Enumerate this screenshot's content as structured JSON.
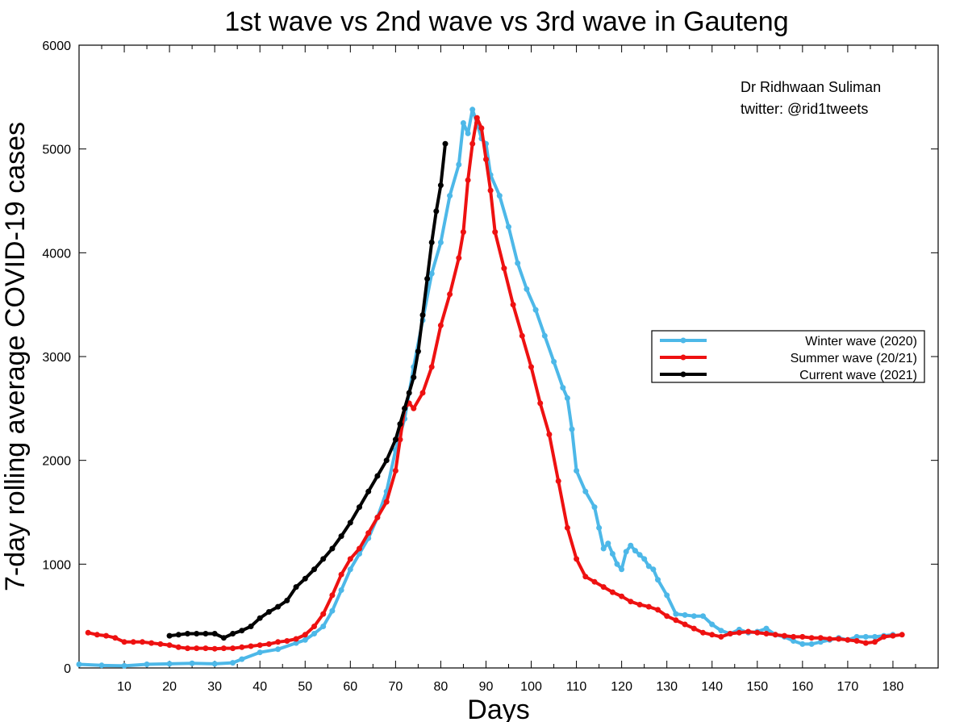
{
  "chart_data": {
    "type": "line",
    "title": "1st wave vs 2nd wave vs 3rd wave in Gauteng",
    "xlabel": "Days",
    "ylabel": "7-day rolling average COVID-19 cases",
    "xlim": [
      0,
      190
    ],
    "ylim": [
      0,
      6000
    ],
    "x_ticks": [
      10,
      20,
      30,
      40,
      50,
      60,
      70,
      80,
      90,
      100,
      110,
      120,
      130,
      140,
      150,
      160,
      170,
      180
    ],
    "y_ticks": [
      0,
      1000,
      2000,
      3000,
      4000,
      5000,
      6000
    ],
    "grid": false,
    "legend_position": "right-middle",
    "annotation": [
      "Dr Ridhwaan Suliman",
      "twitter: @rid1tweets"
    ],
    "series": [
      {
        "name": "Winter wave (2020)",
        "color": "#4db8e8",
        "points": [
          [
            0,
            35
          ],
          [
            5,
            25
          ],
          [
            10,
            20
          ],
          [
            15,
            35
          ],
          [
            20,
            40
          ],
          [
            25,
            45
          ],
          [
            30,
            40
          ],
          [
            34,
            50
          ],
          [
            36,
            85
          ],
          [
            40,
            150
          ],
          [
            44,
            180
          ],
          [
            48,
            240
          ],
          [
            50,
            270
          ],
          [
            52,
            330
          ],
          [
            54,
            400
          ],
          [
            56,
            550
          ],
          [
            58,
            750
          ],
          [
            60,
            950
          ],
          [
            62,
            1100
          ],
          [
            64,
            1250
          ],
          [
            66,
            1450
          ],
          [
            68,
            1700
          ],
          [
            70,
            2100
          ],
          [
            72,
            2400
          ],
          [
            74,
            2900
          ],
          [
            76,
            3350
          ],
          [
            78,
            3800
          ],
          [
            80,
            4100
          ],
          [
            82,
            4550
          ],
          [
            84,
            4850
          ],
          [
            85,
            5250
          ],
          [
            86,
            5150
          ],
          [
            87,
            5380
          ],
          [
            88,
            5250
          ],
          [
            89,
            5100
          ],
          [
            90,
            5050
          ],
          [
            91,
            4750
          ],
          [
            93,
            4550
          ],
          [
            95,
            4250
          ],
          [
            97,
            3900
          ],
          [
            99,
            3650
          ],
          [
            101,
            3450
          ],
          [
            103,
            3200
          ],
          [
            105,
            2950
          ],
          [
            107,
            2700
          ],
          [
            108,
            2600
          ],
          [
            109,
            2300
          ],
          [
            110,
            1900
          ],
          [
            112,
            1700
          ],
          [
            114,
            1550
          ],
          [
            115,
            1350
          ],
          [
            116,
            1150
          ],
          [
            117,
            1200
          ],
          [
            118,
            1100
          ],
          [
            119,
            1000
          ],
          [
            120,
            950
          ],
          [
            121,
            1120
          ],
          [
            122,
            1180
          ],
          [
            123,
            1130
          ],
          [
            124,
            1090
          ],
          [
            125,
            1050
          ],
          [
            126,
            980
          ],
          [
            127,
            950
          ],
          [
            128,
            850
          ],
          [
            130,
            700
          ],
          [
            132,
            520
          ],
          [
            134,
            510
          ],
          [
            136,
            500
          ],
          [
            138,
            500
          ],
          [
            140,
            420
          ],
          [
            142,
            360
          ],
          [
            144,
            330
          ],
          [
            146,
            370
          ],
          [
            148,
            340
          ],
          [
            150,
            350
          ],
          [
            152,
            380
          ],
          [
            154,
            320
          ],
          [
            156,
            300
          ],
          [
            158,
            260
          ],
          [
            160,
            230
          ],
          [
            162,
            230
          ],
          [
            164,
            250
          ],
          [
            166,
            270
          ],
          [
            168,
            290
          ],
          [
            170,
            270
          ],
          [
            172,
            300
          ],
          [
            174,
            300
          ],
          [
            176,
            300
          ],
          [
            178,
            310
          ],
          [
            180,
            320
          ]
        ]
      },
      {
        "name": "Summer wave (20/21)",
        "color": "#ee1111",
        "points": [
          [
            2,
            340
          ],
          [
            4,
            320
          ],
          [
            6,
            310
          ],
          [
            8,
            290
          ],
          [
            10,
            250
          ],
          [
            12,
            250
          ],
          [
            14,
            250
          ],
          [
            16,
            240
          ],
          [
            18,
            230
          ],
          [
            20,
            220
          ],
          [
            22,
            200
          ],
          [
            24,
            190
          ],
          [
            26,
            190
          ],
          [
            28,
            190
          ],
          [
            30,
            185
          ],
          [
            32,
            190
          ],
          [
            34,
            190
          ],
          [
            36,
            200
          ],
          [
            38,
            210
          ],
          [
            40,
            220
          ],
          [
            42,
            230
          ],
          [
            44,
            250
          ],
          [
            46,
            260
          ],
          [
            48,
            280
          ],
          [
            50,
            320
          ],
          [
            52,
            400
          ],
          [
            54,
            520
          ],
          [
            56,
            700
          ],
          [
            58,
            900
          ],
          [
            60,
            1050
          ],
          [
            62,
            1150
          ],
          [
            64,
            1300
          ],
          [
            66,
            1450
          ],
          [
            68,
            1600
          ],
          [
            70,
            1900
          ],
          [
            71,
            2200
          ],
          [
            72,
            2500
          ],
          [
            73,
            2550
          ],
          [
            74,
            2500
          ],
          [
            76,
            2650
          ],
          [
            78,
            2900
          ],
          [
            80,
            3300
          ],
          [
            82,
            3600
          ],
          [
            84,
            3950
          ],
          [
            85,
            4200
          ],
          [
            86,
            4700
          ],
          [
            87,
            5050
          ],
          [
            88,
            5300
          ],
          [
            89,
            5200
          ],
          [
            90,
            4900
          ],
          [
            91,
            4600
          ],
          [
            92,
            4200
          ],
          [
            94,
            3850
          ],
          [
            96,
            3500
          ],
          [
            98,
            3200
          ],
          [
            100,
            2900
          ],
          [
            102,
            2550
          ],
          [
            104,
            2250
          ],
          [
            106,
            1800
          ],
          [
            108,
            1350
          ],
          [
            110,
            1050
          ],
          [
            112,
            880
          ],
          [
            114,
            830
          ],
          [
            116,
            780
          ],
          [
            118,
            730
          ],
          [
            120,
            690
          ],
          [
            122,
            640
          ],
          [
            124,
            610
          ],
          [
            126,
            590
          ],
          [
            128,
            560
          ],
          [
            130,
            500
          ],
          [
            132,
            460
          ],
          [
            134,
            420
          ],
          [
            136,
            380
          ],
          [
            138,
            340
          ],
          [
            140,
            320
          ],
          [
            142,
            300
          ],
          [
            144,
            330
          ],
          [
            146,
            340
          ],
          [
            148,
            350
          ],
          [
            150,
            340
          ],
          [
            152,
            330
          ],
          [
            154,
            320
          ],
          [
            156,
            310
          ],
          [
            158,
            300
          ],
          [
            160,
            300
          ],
          [
            162,
            290
          ],
          [
            164,
            290
          ],
          [
            166,
            280
          ],
          [
            168,
            280
          ],
          [
            170,
            270
          ],
          [
            172,
            260
          ],
          [
            174,
            240
          ],
          [
            176,
            250
          ],
          [
            178,
            300
          ],
          [
            180,
            310
          ],
          [
            182,
            320
          ]
        ]
      },
      {
        "name": "Current wave (2021)",
        "color": "#000000",
        "points": [
          [
            20,
            310
          ],
          [
            22,
            320
          ],
          [
            24,
            330
          ],
          [
            26,
            330
          ],
          [
            28,
            330
          ],
          [
            30,
            330
          ],
          [
            32,
            290
          ],
          [
            34,
            330
          ],
          [
            36,
            360
          ],
          [
            38,
            400
          ],
          [
            40,
            480
          ],
          [
            42,
            540
          ],
          [
            44,
            590
          ],
          [
            46,
            650
          ],
          [
            48,
            780
          ],
          [
            50,
            860
          ],
          [
            52,
            950
          ],
          [
            54,
            1050
          ],
          [
            56,
            1150
          ],
          [
            58,
            1270
          ],
          [
            60,
            1400
          ],
          [
            62,
            1550
          ],
          [
            64,
            1700
          ],
          [
            66,
            1850
          ],
          [
            68,
            2000
          ],
          [
            70,
            2200
          ],
          [
            71,
            2350
          ],
          [
            72,
            2500
          ],
          [
            73,
            2650
          ],
          [
            74,
            2800
          ],
          [
            75,
            3050
          ],
          [
            76,
            3400
          ],
          [
            77,
            3750
          ],
          [
            78,
            4100
          ],
          [
            79,
            4400
          ],
          [
            80,
            4650
          ],
          [
            81,
            5050
          ]
        ]
      }
    ]
  }
}
